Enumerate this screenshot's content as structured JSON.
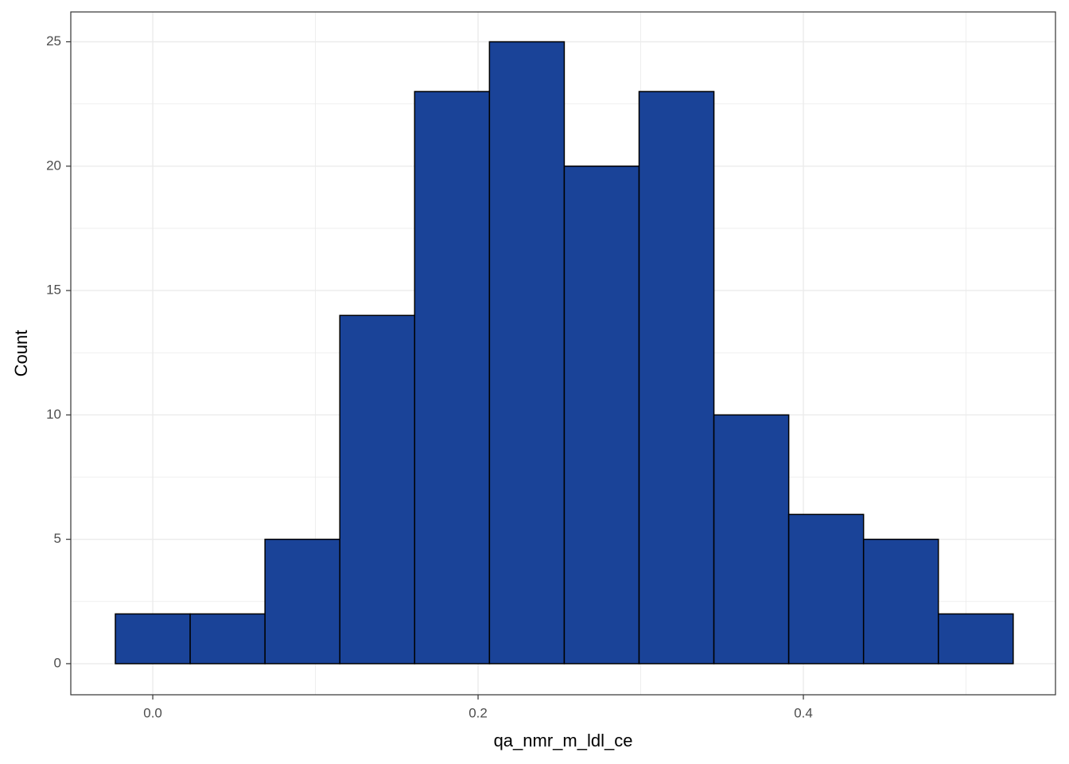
{
  "chart_data": {
    "type": "histogram",
    "x_label": "qa_nmr_m_ldl_ce",
    "y_label": "Count",
    "bins": [
      -0.023,
      0.023,
      0.069,
      0.115,
      0.161,
      0.207,
      0.253,
      0.299,
      0.345,
      0.391,
      0.437,
      0.483,
      0.529
    ],
    "values": [
      2,
      2,
      5,
      14,
      23,
      25,
      20,
      23,
      10,
      6,
      5,
      2
    ],
    "color": "#1a4398",
    "edgecolor": "#000000",
    "xlim": [
      -0.0504,
      0.555
    ],
    "ylim": [
      -1.25,
      26.2
    ],
    "xticks": [
      {
        "value": 0,
        "label": "0.0"
      },
      0.2,
      0.4
    ],
    "yticks": [
      0,
      5,
      10,
      15,
      20,
      25
    ],
    "x_minor_grid": [
      0.1,
      0.3,
      0.5
    ],
    "y_minor_grid": [
      2.5,
      7.5,
      12.5,
      17.5,
      22.5
    ],
    "grid": true
  }
}
